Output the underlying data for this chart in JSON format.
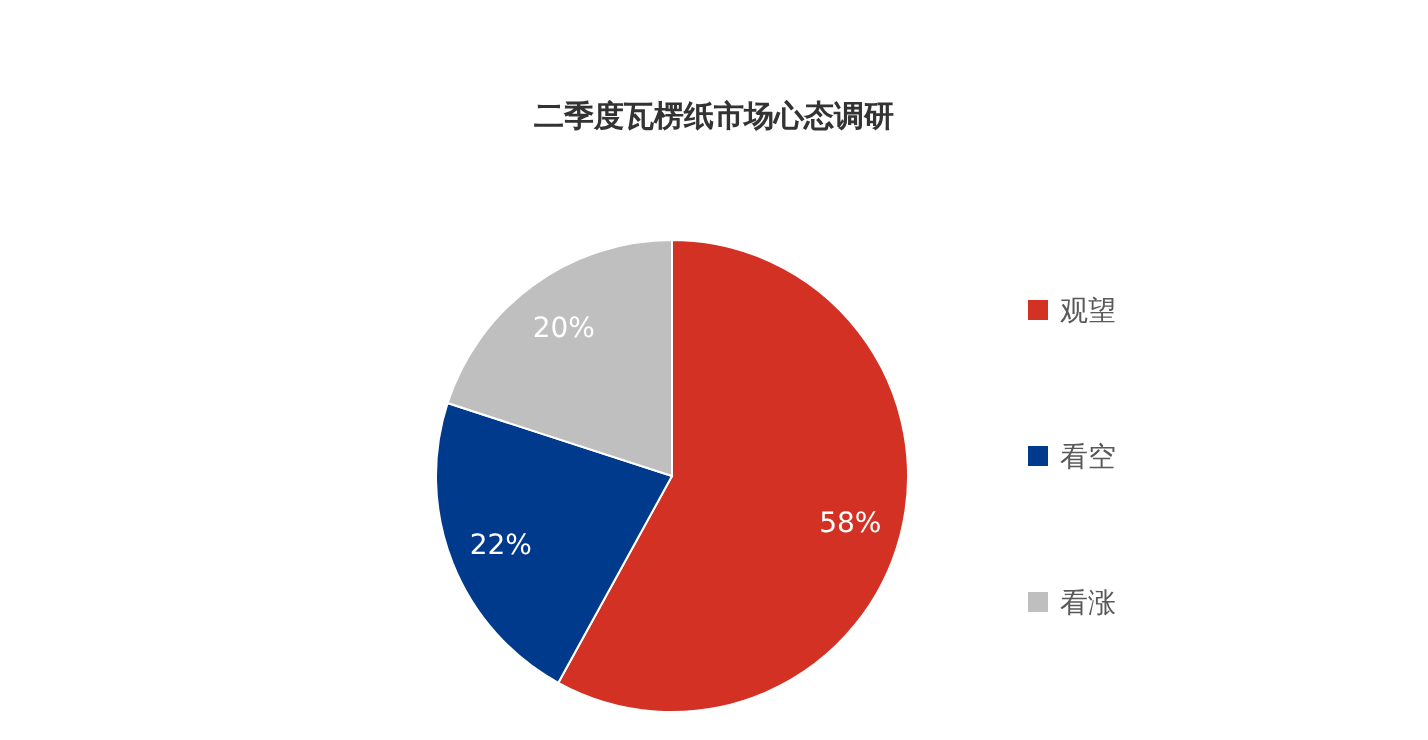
{
  "chart_data": {
    "type": "pie",
    "title": "二季度瓦楞纸市场心态调研",
    "categories": [
      "观望",
      "看空",
      "看涨"
    ],
    "values": [
      58,
      22,
      20
    ],
    "colors": [
      "#d33124",
      "#003a8c",
      "#bfbfbf"
    ],
    "value_labels": [
      "58%",
      "22%",
      "20%"
    ],
    "legend": "right"
  }
}
